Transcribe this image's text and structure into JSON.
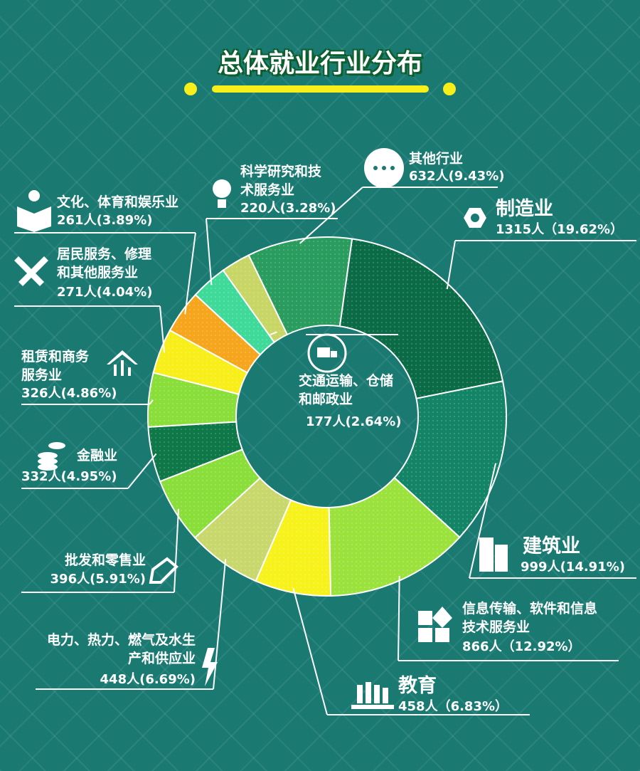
{
  "chart_data": {
    "type": "pie",
    "title": "总体就业行业分布",
    "categories": [
      "制造业",
      "建筑业",
      "信息传输、软件和信息技术服务业",
      "教育",
      "电力、热力、燃气及水生产和供应业",
      "批发和零售业",
      "金融业",
      "租赁和商务服务业",
      "居民服务、修理和其他服务业",
      "文化、体育和娱乐业",
      "科学研究和技术服务业",
      "交通运输、仓储和邮政业",
      "其他行业"
    ],
    "values": [
      1315,
      999,
      866,
      458,
      448,
      396,
      332,
      326,
      271,
      261,
      220,
      177,
      632
    ],
    "value_labels": [
      "1315人（19.62%）",
      "999人(14.91%)",
      "866人（12.92%）",
      "458人（6.83%）",
      "448人(6.69%)",
      "396人(5.91%)",
      "332人(4.95%)",
      "326人(4.86%)",
      "271人(4.04%)",
      "261人(3.89%)",
      "220人(3.28%)",
      "177人(2.64%)",
      "632人(9.43%)"
    ],
    "colors": [
      "#0b6b46",
      "#138566",
      "#9be33c",
      "#f7f21c",
      "#c9d86c",
      "#8ade3a",
      "#0f7848",
      "#8ade3a",
      "#f7ee1a",
      "#f5a61c",
      "#3fd99a",
      "#c7d664",
      "#2a9d5e"
    ]
  }
}
